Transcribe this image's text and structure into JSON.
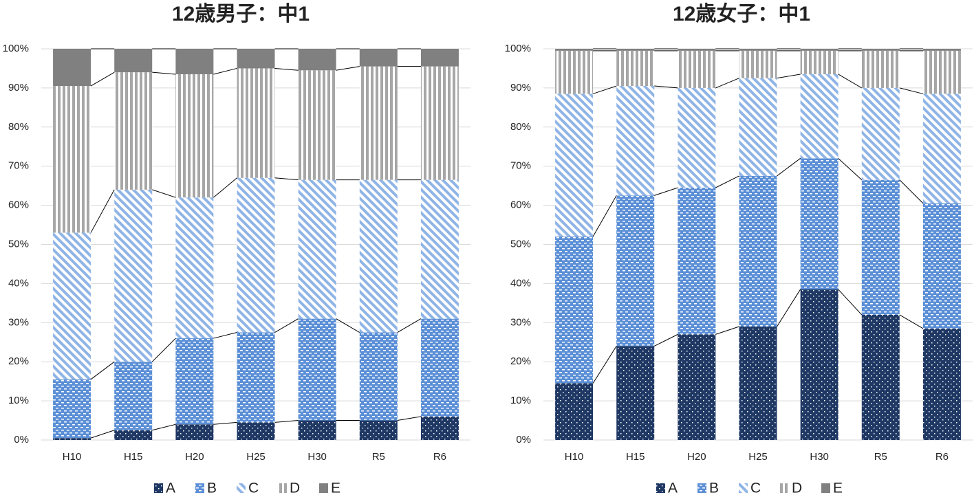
{
  "chart_data": [
    {
      "type": "stacked_bar",
      "title": "12歳男子：中1",
      "categories": [
        "H10",
        "H15",
        "H20",
        "H25",
        "H30",
        "R5",
        "R6"
      ],
      "ylim": [
        0,
        100
      ],
      "yticks": [
        {
          "value": 0,
          "label": "0%"
        },
        {
          "value": 10,
          "label": "10%"
        },
        {
          "value": 20,
          "label": "20%"
        },
        {
          "value": 30,
          "label": "30%"
        },
        {
          "value": 40,
          "label": "40%"
        },
        {
          "value": 50,
          "label": "50%"
        },
        {
          "value": 60,
          "label": "60%"
        },
        {
          "value": 70,
          "label": "70%"
        },
        {
          "value": 80,
          "label": "80%"
        },
        {
          "value": 90,
          "label": "90%"
        },
        {
          "value": 100,
          "label": "100%"
        }
      ],
      "grid": true,
      "series": [
        {
          "name": "A",
          "color": "#1f3864",
          "pattern": "dots",
          "values": [
            0.5,
            2.5,
            4,
            4.5,
            5,
            5,
            6
          ]
        },
        {
          "name": "B",
          "color": "#5b8fd6",
          "pattern": "dashes",
          "values": [
            15,
            17.5,
            22,
            23,
            26,
            22.5,
            25
          ]
        },
        {
          "name": "C",
          "color": "#8fb4e6",
          "pattern": "diagonal",
          "values": [
            37.5,
            44,
            36,
            39.5,
            35.5,
            39,
            35.5
          ]
        },
        {
          "name": "D",
          "color": "#a6a6a6",
          "pattern": "vertical",
          "values": [
            37.5,
            30,
            31.5,
            28,
            28,
            29,
            29
          ]
        },
        {
          "name": "E",
          "color": "#808080",
          "pattern": "solid",
          "values": [
            9.5,
            6,
            6.5,
            5,
            5.5,
            4.5,
            4.5
          ]
        }
      ]
    },
    {
      "type": "stacked_bar",
      "title": "12歳女子：中1",
      "categories": [
        "H10",
        "H15",
        "H20",
        "H25",
        "H30",
        "R5",
        "R6"
      ],
      "ylim": [
        0,
        100
      ],
      "yticks": [
        {
          "value": 0,
          "label": "0%"
        },
        {
          "value": 10,
          "label": "10%"
        },
        {
          "value": 20,
          "label": "20%"
        },
        {
          "value": 30,
          "label": "30%"
        },
        {
          "value": 40,
          "label": "40%"
        },
        {
          "value": 50,
          "label": "50%"
        },
        {
          "value": 60,
          "label": "60%"
        },
        {
          "value": 70,
          "label": "70%"
        },
        {
          "value": 80,
          "label": "80%"
        },
        {
          "value": 90,
          "label": "90%"
        },
        {
          "value": 100,
          "label": "100%"
        }
      ],
      "grid": true,
      "series": [
        {
          "name": "A",
          "color": "#1f3864",
          "pattern": "dots",
          "values": [
            14.5,
            24,
            27,
            29,
            38.5,
            32,
            28.5
          ]
        },
        {
          "name": "B",
          "color": "#5b8fd6",
          "pattern": "dashes",
          "values": [
            37.5,
            38.5,
            37.5,
            38.5,
            33.5,
            34.5,
            32
          ]
        },
        {
          "name": "C",
          "color": "#8fb4e6",
          "pattern": "diagonal",
          "values": [
            36.5,
            28,
            25.5,
            25,
            21.5,
            23.5,
            28
          ]
        },
        {
          "name": "D",
          "color": "#a6a6a6",
          "pattern": "vertical",
          "values": [
            11,
            9,
            9.5,
            7,
            6,
            9.5,
            11
          ]
        },
        {
          "name": "E",
          "color": "#808080",
          "pattern": "solid",
          "values": [
            0.5,
            0.5,
            0.5,
            0.5,
            0.5,
            0.5,
            0.5
          ]
        }
      ]
    }
  ]
}
